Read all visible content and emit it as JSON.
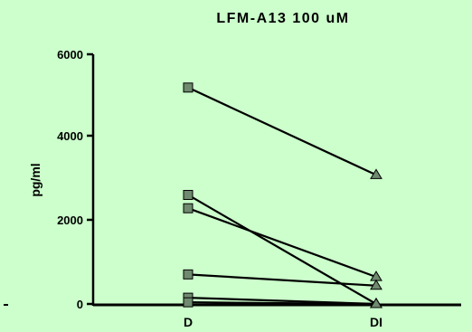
{
  "chart_data": {
    "type": "line",
    "title": "LFM-A13 100 uM",
    "xlabel": "",
    "ylabel": "pg/ml",
    "categories": [
      "D",
      "DI"
    ],
    "yticks": [
      "0",
      "2000",
      "4000",
      "6000"
    ],
    "ylim": [
      0,
      6000
    ],
    "grid": false,
    "legend": "none",
    "series": [
      {
        "values": [
          5200,
          3100
        ]
      },
      {
        "values": [
          2620,
          0
        ]
      },
      {
        "values": [
          2300,
          650
        ]
      },
      {
        "values": [
          710,
          440
        ]
      },
      {
        "values": [
          150,
          0
        ]
      },
      {
        "values": [
          40,
          0
        ]
      }
    ],
    "colors": {
      "background": "#ccffcc",
      "d_marker": "#6f8a6f",
      "di_marker": "#6f8a6f",
      "line": "#000000"
    }
  }
}
